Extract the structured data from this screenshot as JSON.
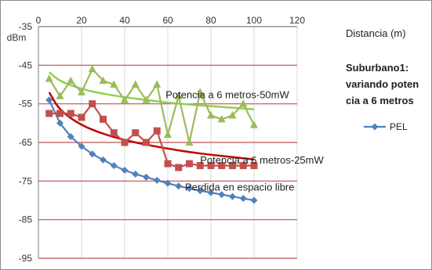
{
  "chart_data": {
    "type": "line",
    "title": "Suburbano1: variando potencia a 6 metros",
    "title_lines": [
      "Suburbano1:",
      "variando poten",
      "cia a 6 metros"
    ],
    "xlabel": "Distancia (m)",
    "ylabel": "dBm",
    "xlim": [
      0,
      120
    ],
    "ylim": [
      -95,
      -35
    ],
    "x_ticks": [
      "0",
      "20",
      "40",
      "60",
      "80",
      "100",
      "120"
    ],
    "y_ticks": [
      "-35",
      "-45",
      "-55",
      "-65",
      "-75",
      "-85",
      "-95"
    ],
    "grid": "horizontal",
    "legend_position": "right",
    "legend": [
      "PEL"
    ],
    "series": [
      {
        "name": "PEL",
        "color": "#4f81bd",
        "marker": "diamond",
        "x": [
          5,
          10,
          15,
          20,
          25,
          30,
          35,
          40,
          45,
          50,
          55,
          60,
          65,
          70,
          75,
          80,
          85,
          90,
          95,
          100
        ],
        "y": [
          -54,
          -60,
          -63.5,
          -66,
          -68,
          -69.5,
          -71,
          -72.2,
          -73.2,
          -74,
          -74.8,
          -75.6,
          -76.3,
          -76.9,
          -77.5,
          -78,
          -78.5,
          -79,
          -79.5,
          -80
        ]
      },
      {
        "color": "#c0504d",
        "marker": "square",
        "x": [
          5,
          10,
          15,
          20,
          25,
          30,
          35,
          40,
          45,
          50,
          55,
          60,
          65,
          70,
          75,
          80,
          85,
          90,
          95,
          100
        ],
        "y": [
          -57.5,
          -57.5,
          -57.5,
          -58.5,
          -55,
          -59,
          -62.5,
          -65,
          -62.5,
          -65,
          -62,
          -70.5,
          -71.5,
          -70.5,
          -71,
          -71,
          -71,
          -71,
          -71,
          -71
        ]
      },
      {
        "color": "#9bbb59",
        "marker": "triangle",
        "x": [
          5,
          10,
          15,
          20,
          25,
          30,
          35,
          40,
          45,
          50,
          55,
          60,
          65,
          70,
          75,
          80,
          85,
          90,
          95,
          100
        ],
        "y": [
          -48.5,
          -53,
          -49,
          -52,
          -46,
          -49,
          -50,
          -54,
          -50,
          -54,
          -50,
          -63,
          -53,
          -65,
          -52,
          -58,
          -59,
          -58,
          -55,
          -60.5
        ]
      }
    ],
    "trendlines": [
      {
        "color": "#c00000",
        "x": [
          5,
          10,
          20,
          30,
          40,
          50,
          60,
          70,
          80,
          90,
          100
        ],
        "y": [
          -52,
          -56.8,
          -60.6,
          -62.8,
          -64.4,
          -65.6,
          -66.6,
          -67.5,
          -68.2,
          -68.8,
          -69.4
        ]
      },
      {
        "color": "#92d050",
        "x": [
          5,
          10,
          20,
          30,
          40,
          50,
          60,
          70,
          80,
          90,
          100
        ],
        "y": [
          -46.8,
          -49.2,
          -51.2,
          -52.4,
          -53.3,
          -54,
          -54.7,
          -55.2,
          -55.6,
          -56,
          -56.4
        ]
      }
    ],
    "annotations": [
      {
        "text": "Potencia a 6 metros-50mW",
        "x": 59,
        "y": -53.5
      },
      {
        "text": "Potencia a 6 metros-25mW",
        "x": 75,
        "y": -70.5
      },
      {
        "text": "Perdida en espacio libre",
        "x": 68,
        "y": -77.5
      }
    ]
  }
}
